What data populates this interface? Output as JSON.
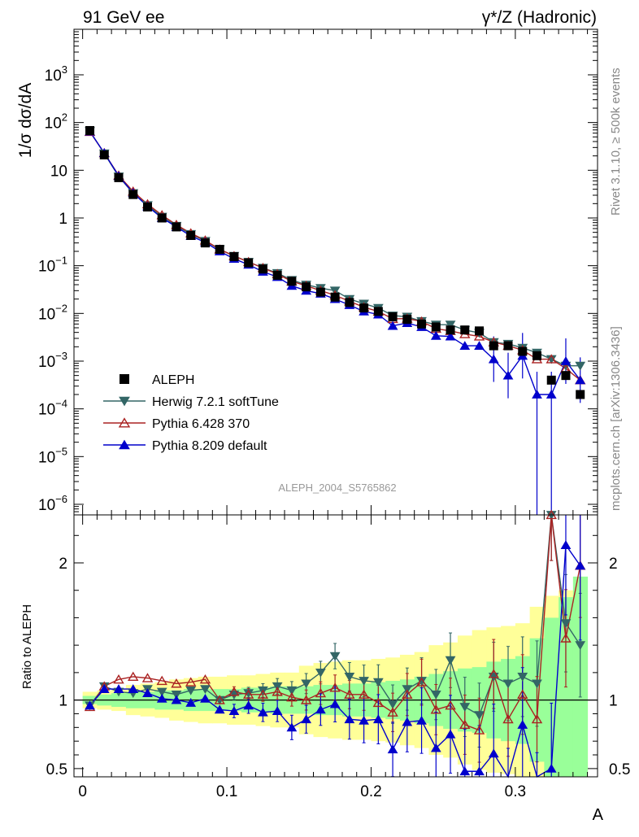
{
  "header": {
    "left": "91 GeV ee",
    "right": "γ*/Z (Hadronic)"
  },
  "side_text": {
    "rivet": "Rivet 3.1.10, ≥ 500k events",
    "mcplots": "mcplots.cern.ch [arXiv:1306.3436]"
  },
  "analysis_id": "ALEPH_2004_S5765862",
  "chart_data": [
    {
      "type": "scatter",
      "panel": "main",
      "ylabel": "1/σ dσ/dA",
      "xlabel": "",
      "yscale": "log",
      "xlim": [
        -0.006,
        0.357
      ],
      "ylim": [
        6e-07,
        9000
      ],
      "yticks": [
        {
          "value": 1e-06,
          "label": "10",
          "exp": "−6"
        },
        {
          "value": 1e-05,
          "label": "10",
          "exp": "−5"
        },
        {
          "value": 0.0001,
          "label": "10",
          "exp": "−4"
        },
        {
          "value": 0.001,
          "label": "10",
          "exp": "−3"
        },
        {
          "value": 0.01,
          "label": "10",
          "exp": "−2"
        },
        {
          "value": 0.1,
          "label": "10",
          "exp": "−1"
        },
        {
          "value": 1,
          "label": "1",
          "exp": ""
        },
        {
          "value": 10,
          "label": "10",
          "exp": ""
        },
        {
          "value": 100,
          "label": "10",
          "exp": "2"
        },
        {
          "value": 1000,
          "label": "10",
          "exp": "3"
        }
      ],
      "x": [
        0.005,
        0.015,
        0.025,
        0.035,
        0.045,
        0.055,
        0.065,
        0.075,
        0.085,
        0.095,
        0.105,
        0.115,
        0.125,
        0.135,
        0.145,
        0.155,
        0.165,
        0.175,
        0.185,
        0.195,
        0.205,
        0.215,
        0.225,
        0.235,
        0.245,
        0.255,
        0.265,
        0.275,
        0.285,
        0.295,
        0.305,
        0.315,
        0.325,
        0.335,
        0.345
      ],
      "series": [
        {
          "name": "ALEPH",
          "color": "#000000",
          "marker": "square",
          "values": [
            68,
            21,
            7,
            3.1,
            1.7,
            1.0,
            0.65,
            0.43,
            0.3,
            0.22,
            0.155,
            0.115,
            0.085,
            0.063,
            0.047,
            0.036,
            0.028,
            0.022,
            0.017,
            0.013,
            0.011,
            0.0085,
            0.0075,
            0.006,
            0.0052,
            0.0045,
            0.0045,
            0.0043,
            0.0021,
            0.0021,
            0.0016,
            0.0013,
            0.0004,
            0.0005,
            0.0002
          ]
        },
        {
          "name": "Herwig 7.2.1 softTune",
          "color": "#336666",
          "marker": "triangle-down",
          "values": [
            66,
            22.5,
            7.4,
            3.3,
            1.85,
            1.06,
            0.68,
            0.46,
            0.33,
            0.22,
            0.16,
            0.12,
            0.09,
            0.07,
            0.05,
            0.04,
            0.034,
            0.03,
            0.02,
            0.016,
            0.013,
            0.009,
            0.0085,
            0.0069,
            0.0058,
            0.0058,
            0.0045,
            0.0039,
            0.0025,
            0.0023,
            0.0019,
            0.0015,
            0.0011,
            0.0008,
            0.0008
          ]
        },
        {
          "name": "Pythia 6.428 370",
          "color": "#aa2222",
          "marker": "triangle-up-open",
          "values": [
            64,
            23,
            7.8,
            3.6,
            1.95,
            1.15,
            0.72,
            0.48,
            0.34,
            0.22,
            0.16,
            0.12,
            0.09,
            0.067,
            0.047,
            0.038,
            0.03,
            0.024,
            0.018,
            0.0135,
            0.011,
            0.0077,
            0.0078,
            0.0068,
            0.0048,
            0.0043,
            0.0037,
            0.0033,
            0.0025,
            0.0021,
            0.0017,
            0.0011,
            0.0011,
            0.0007,
            0.0004
          ]
        },
        {
          "name": "Pythia 8.209 default",
          "color": "#0000cc",
          "marker": "triangle-up",
          "values": [
            65,
            23,
            7.6,
            3.35,
            1.75,
            1.0,
            0.65,
            0.42,
            0.31,
            0.2,
            0.14,
            0.105,
            0.075,
            0.058,
            0.038,
            0.03,
            0.026,
            0.02,
            0.015,
            0.011,
            0.0095,
            0.0055,
            0.0063,
            0.0052,
            0.0034,
            0.0033,
            0.0021,
            0.0021,
            0.0011,
            0.0005,
            0.0013,
            0.0002,
            0.0002,
            0.001,
            0.0004
          ]
        }
      ]
    },
    {
      "type": "line",
      "panel": "ratio",
      "ylabel": "Ratio to ALEPH",
      "xlabel": "A",
      "xlim": [
        -0.006,
        0.357
      ],
      "ylim": [
        0.44,
        2.35
      ],
      "xticks": [
        {
          "value": 0,
          "label": "0"
        },
        {
          "value": 0.1,
          "label": "0.1"
        },
        {
          "value": 0.2,
          "label": "0.2"
        },
        {
          "value": 0.3,
          "label": "0.3"
        }
      ],
      "yticks": [
        {
          "value": 0.5,
          "label": "0.5"
        },
        {
          "value": 1,
          "label": "1"
        },
        {
          "value": 2,
          "label": "2"
        }
      ],
      "x": [
        0.005,
        0.015,
        0.025,
        0.035,
        0.045,
        0.055,
        0.065,
        0.075,
        0.085,
        0.095,
        0.105,
        0.115,
        0.125,
        0.135,
        0.145,
        0.155,
        0.165,
        0.175,
        0.185,
        0.195,
        0.205,
        0.215,
        0.225,
        0.235,
        0.245,
        0.255,
        0.265,
        0.275,
        0.285,
        0.295,
        0.305,
        0.315,
        0.325,
        0.335,
        0.345
      ],
      "bands": {
        "yellow": [
          0.06,
          0.07,
          0.08,
          0.11,
          0.12,
          0.13,
          0.15,
          0.16,
          0.17,
          0.17,
          0.18,
          0.18,
          0.19,
          0.2,
          0.2,
          0.25,
          0.27,
          0.28,
          0.29,
          0.29,
          0.3,
          0.31,
          0.33,
          0.35,
          0.4,
          0.42,
          0.47,
          0.51,
          0.53,
          0.54,
          0.56,
          0.68,
          0.76,
          0.8,
          0.8
        ],
        "green": [
          0.03,
          0.04,
          0.05,
          0.06,
          0.06,
          0.07,
          0.07,
          0.08,
          0.08,
          0.08,
          0.08,
          0.09,
          0.09,
          0.1,
          0.1,
          0.1,
          0.11,
          0.11,
          0.12,
          0.12,
          0.13,
          0.14,
          0.15,
          0.17,
          0.19,
          0.21,
          0.23,
          0.24,
          0.28,
          0.3,
          0.32,
          0.45,
          0.6,
          0.75,
          0.9
        ]
      },
      "series": [
        {
          "name": "Herwig 7.2.1 softTune",
          "color": "#336666",
          "values": [
            0.96,
            1.1,
            1.06,
            1.05,
            1.08,
            1.06,
            1.04,
            1.07,
            1.08,
            1.0,
            1.04,
            1.05,
            1.07,
            1.1,
            1.07,
            1.12,
            1.2,
            1.32,
            1.17,
            1.14,
            1.13,
            0.97,
            1.08,
            1.14,
            1.04,
            1.29,
            0.95,
            0.89,
            1.17,
            1.12,
            1.17,
            1.12,
            2.35,
            1.56,
            1.4
          ]
        },
        {
          "name": "Pythia 6.428 370",
          "color": "#aa2222",
          "values": [
            0.95,
            1.1,
            1.15,
            1.17,
            1.16,
            1.14,
            1.12,
            1.13,
            1.15,
            1.0,
            1.06,
            1.04,
            1.04,
            1.06,
            1.02,
            1.0,
            1.05,
            1.09,
            1.04,
            1.04,
            0.98,
            0.91,
            1.04,
            1.13,
            0.93,
            0.96,
            0.82,
            0.78,
            1.19,
            0.86,
            1.04,
            0.86,
            2.35,
            1.45,
            1.98
          ]
        },
        {
          "name": "Pythia 8.209 default",
          "color": "#0000cc",
          "values": [
            0.96,
            1.08,
            1.08,
            1.08,
            1.05,
            1.01,
            1.0,
            0.98,
            1.01,
            0.93,
            0.92,
            0.96,
            0.91,
            0.92,
            0.8,
            0.86,
            0.93,
            0.97,
            0.86,
            0.85,
            0.86,
            0.64,
            0.84,
            0.85,
            0.65,
            0.75,
            0.48,
            0.48,
            0.61,
            0.26,
            0.82,
            0.17,
            0.5,
            2.13,
            1.98
          ]
        }
      ]
    }
  ],
  "legend": [
    {
      "label": "ALEPH",
      "color": "#000000",
      "marker": "square"
    },
    {
      "label": "Herwig 7.2.1 softTune",
      "color": "#336666",
      "marker": "triangle-down"
    },
    {
      "label": "Pythia 6.428 370",
      "color": "#aa2222",
      "marker": "triangle-up-open"
    },
    {
      "label": "Pythia 8.209 default",
      "color": "#0000cc",
      "marker": "triangle-up"
    }
  ]
}
